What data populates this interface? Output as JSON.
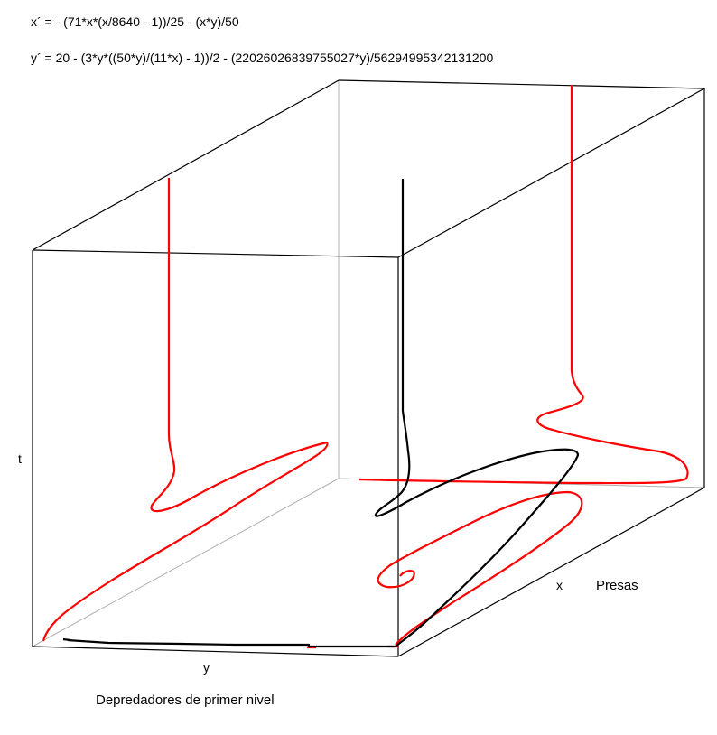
{
  "chart_data": {
    "type": "line",
    "title_equations": [
      "x´ = - (71*x*(x/8640 - 1))/25 - (x*y)/50",
      "y´ = 20 - (3*y*((50*y)/(11*x) - 1))/2 - (22026026839755027*y)/56294995342131200"
    ],
    "axes": {
      "x": "x",
      "y": "y",
      "t": "t"
    },
    "axis_titles": {
      "x_axis": "Presas",
      "y_axis": "Depredadores de primer nivel"
    },
    "series": [
      {
        "name": "trajectory-3d",
        "color": "#000000",
        "kind": "spiral then vertical"
      },
      {
        "name": "projection-back-wall",
        "color": "#ff0000",
        "kind": "projection"
      },
      {
        "name": "projection-floor",
        "color": "#ff0000",
        "kind": "spiral projection"
      },
      {
        "name": "projection-left-wall",
        "color": "#ff0000",
        "kind": "projection"
      }
    ],
    "grid": false,
    "legend": "none"
  },
  "colors": {
    "trajectory": "#000000",
    "projection": "#ff0000",
    "box": "#000000",
    "hidden_edge": "#b0b0b0"
  }
}
